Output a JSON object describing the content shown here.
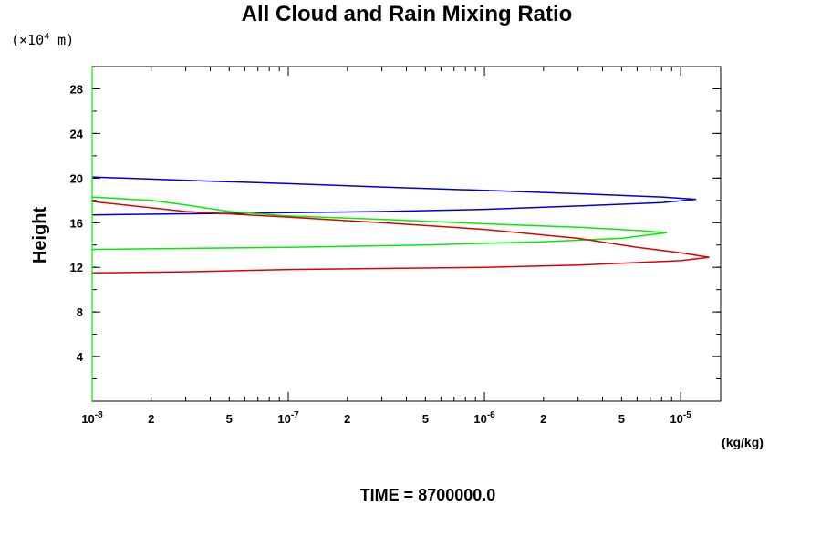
{
  "chart_data": {
    "type": "line",
    "title": "All Cloud and Rain Mixing Ratio",
    "ylabel": "Height",
    "yunit_prefix": "(×10",
    "yunit_exponent": "4",
    "yunit_suffix": " m)",
    "xunit": "(kg/kg)",
    "footer": "TIME = 8700000.0",
    "x_scale": "log",
    "xlim": [
      1e-08,
      1.6e-05
    ],
    "ylim": [
      0,
      30
    ],
    "grid": false,
    "legend": "none",
    "y_ticks": [
      {
        "value": 4,
        "label": "4"
      },
      {
        "value": 8,
        "label": "8"
      },
      {
        "value": 12,
        "label": "12"
      },
      {
        "value": 16,
        "label": "16"
      },
      {
        "value": 20,
        "label": "20"
      },
      {
        "value": 24,
        "label": "24"
      },
      {
        "value": 28,
        "label": "28"
      }
    ],
    "x_ticks": [
      {
        "value": 1e-08,
        "base": "10",
        "exp": "-8"
      },
      {
        "value": 2e-08,
        "base": "2",
        "exp": ""
      },
      {
        "value": 5e-08,
        "base": "5",
        "exp": ""
      },
      {
        "value": 1e-07,
        "base": "10",
        "exp": "-7"
      },
      {
        "value": 2e-07,
        "base": "2",
        "exp": ""
      },
      {
        "value": 5e-07,
        "base": "5",
        "exp": ""
      },
      {
        "value": 1e-06,
        "base": "10",
        "exp": "-6"
      },
      {
        "value": 2e-06,
        "base": "2",
        "exp": ""
      },
      {
        "value": 5e-06,
        "base": "5",
        "exp": ""
      },
      {
        "value": 1e-05,
        "base": "10",
        "exp": "-5"
      }
    ],
    "series": [
      {
        "color": "#0000cc",
        "points": [
          [
            1e-08,
            20.1
          ],
          [
            3e-08,
            19.8
          ],
          [
            1e-07,
            19.5
          ],
          [
            3e-07,
            19.2
          ],
          [
            1e-06,
            18.9
          ],
          [
            3e-06,
            18.6
          ],
          [
            8e-06,
            18.3
          ],
          [
            1.2e-05,
            18.1
          ],
          [
            8e-06,
            17.8
          ],
          [
            3e-06,
            17.5
          ],
          [
            1e-06,
            17.2
          ],
          [
            3e-07,
            17.0
          ],
          [
            1e-07,
            16.9
          ],
          [
            3e-08,
            16.8
          ],
          [
            1e-08,
            16.7
          ]
        ]
      },
      {
        "color": "#00ee00",
        "points": [
          [
            1e-08,
            18.3
          ],
          [
            2e-08,
            18.0
          ],
          [
            3e-08,
            17.6
          ],
          [
            5e-08,
            17.0
          ],
          [
            1e-07,
            16.6
          ],
          [
            3e-07,
            16.3
          ],
          [
            1e-06,
            15.9
          ],
          [
            3e-06,
            15.6
          ],
          [
            6e-06,
            15.3
          ],
          [
            8.5e-06,
            15.1
          ],
          [
            5e-06,
            14.6
          ],
          [
            2e-06,
            14.3
          ],
          [
            5e-07,
            14.0
          ],
          [
            1e-07,
            13.8
          ],
          [
            1e-08,
            13.6
          ]
        ]
      },
      {
        "color": "#dd0000",
        "points": [
          [
            1e-08,
            17.9
          ],
          [
            3e-08,
            17.0
          ],
          [
            1e-07,
            16.5
          ],
          [
            3e-07,
            16.0
          ],
          [
            1e-06,
            15.4
          ],
          [
            3e-06,
            14.6
          ],
          [
            6e-06,
            13.8
          ],
          [
            1e-05,
            13.3
          ],
          [
            1.4e-05,
            12.9
          ],
          [
            1e-05,
            12.6
          ],
          [
            3e-06,
            12.2
          ],
          [
            1e-06,
            12.0
          ],
          [
            1e-07,
            11.8
          ],
          [
            3e-08,
            11.6
          ],
          [
            1e-08,
            11.5
          ]
        ]
      }
    ]
  }
}
